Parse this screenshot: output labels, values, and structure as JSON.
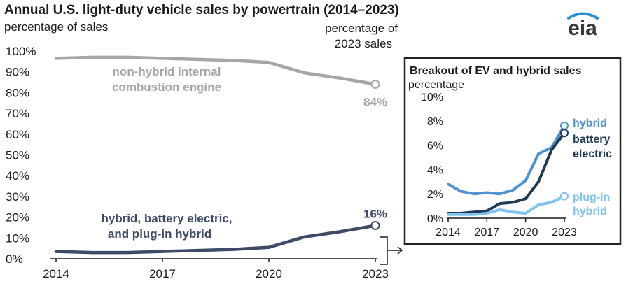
{
  "header": {
    "title": "Annual U.S. light-duty vehicle sales by powertrain (2014–2023)",
    "left_axis_label": "percentage of sales",
    "right_label_line1": "percentage of",
    "right_label_line2": "2023 sales"
  },
  "logo": {
    "text": "eia"
  },
  "colors": {
    "ice": "#a6a6a6",
    "ev_total": "#3d4b66",
    "hybrid": "#4e93d1",
    "battery_electric": "#1f3b55",
    "plug_in_hybrid": "#7ec4ee",
    "logo_arc": "#2a8fd6",
    "axis": "#1a1a1a"
  },
  "chart_data": [
    {
      "id": "main",
      "type": "line",
      "title": "Annual U.S. light-duty vehicle sales by powertrain (2014–2023)",
      "ylabel": "percentage of sales",
      "x": [
        2014,
        2015,
        2016,
        2017,
        2018,
        2019,
        2020,
        2021,
        2022,
        2023
      ],
      "xticks": [
        "2014",
        "2017",
        "2020",
        "2023"
      ],
      "yticks": [
        "0%",
        "10%",
        "20%",
        "30%",
        "40%",
        "50%",
        "60%",
        "70%",
        "80%",
        "90%",
        "100%"
      ],
      "ylim": [
        0,
        100
      ],
      "grid": false,
      "series": [
        {
          "name_lines": [
            "non-hybrid internal",
            "combustion engine"
          ],
          "values": [
            96.5,
            97,
            97,
            96.5,
            96,
            95.5,
            94.5,
            89.5,
            87,
            84
          ],
          "end_label": "84%"
        },
        {
          "name_lines": [
            "hybrid, battery electric,",
            "and plug-in hybrid"
          ],
          "values": [
            3.5,
            3,
            3,
            3.5,
            4,
            4.5,
            5.5,
            10.5,
            13,
            16
          ],
          "end_label": "16%"
        }
      ]
    },
    {
      "id": "inset",
      "type": "line",
      "title": "Breakout of EV and hybrid sales",
      "ylabel": "percentage",
      "x": [
        2014,
        2015,
        2016,
        2017,
        2018,
        2019,
        2020,
        2021,
        2022,
        2023
      ],
      "xticks": [
        "2014",
        "2017",
        "2020",
        "2023"
      ],
      "yticks": [
        "0%",
        "2%",
        "4%",
        "6%",
        "8%",
        "10%"
      ],
      "ylim": [
        0,
        10
      ],
      "grid": false,
      "series": [
        {
          "name_lines": [
            "hybrid"
          ],
          "values": [
            2.8,
            2.2,
            2.0,
            2.1,
            2.0,
            2.3,
            3.1,
            5.3,
            5.8,
            7.6
          ]
        },
        {
          "name_lines": [
            "battery",
            "electric"
          ],
          "values": [
            0.4,
            0.4,
            0.5,
            0.6,
            1.2,
            1.3,
            1.6,
            3.0,
            5.6,
            7.0
          ]
        },
        {
          "name_lines": [
            "plug-in",
            "hybrid"
          ],
          "values": [
            0.3,
            0.3,
            0.3,
            0.4,
            0.7,
            0.5,
            0.4,
            1.1,
            1.3,
            1.8
          ]
        }
      ]
    }
  ]
}
